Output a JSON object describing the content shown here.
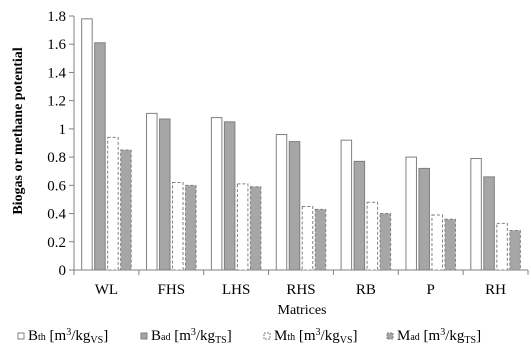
{
  "chart_data": {
    "type": "bar",
    "title": "",
    "xlabel": "Matrices",
    "ylabel": "Biogas or methane potential",
    "ylim": [
      0,
      1.8
    ],
    "yticks": [
      "0",
      "0.2",
      "0.4",
      "0.6",
      "0.8",
      "1",
      "1.2",
      "1.4",
      "1.6",
      "1.8"
    ],
    "categories": [
      "WL",
      "FHS",
      "LHS",
      "RHS",
      "RB",
      "P",
      "RH"
    ],
    "grid": false,
    "legend_position": "bottom",
    "series": [
      {
        "name": "Bth [m3/kgVS]",
        "legend": {
          "main": "B",
          "sub": "th",
          "unit_pre": " [m",
          "sup": "3",
          "unit_mid": "/kg",
          "unit_sub": "VS",
          "unit_post": "]"
        },
        "values": [
          1.78,
          1.11,
          1.08,
          0.96,
          0.92,
          0.8,
          0.79
        ],
        "fill": "#ffffff",
        "stroke": "#808080",
        "dashed": false
      },
      {
        "name": "Bad [m3/kgTS]",
        "legend": {
          "main": "B",
          "sub": "ad",
          "unit_pre": " [m",
          "sup": "3",
          "unit_mid": "/kg",
          "unit_sub": "TS",
          "unit_post": "]"
        },
        "values": [
          1.61,
          1.07,
          1.05,
          0.91,
          0.77,
          0.72,
          0.66
        ],
        "fill": "#a6a6a6",
        "stroke": "#7f7f7f",
        "dashed": false
      },
      {
        "name": "Mth [m3/kgVS]",
        "legend": {
          "main": "M",
          "sub": "th",
          "unit_pre": " [m",
          "sup": "3",
          "unit_mid": "/kg",
          "unit_sub": "VS",
          "unit_post": "]"
        },
        "values": [
          0.94,
          0.62,
          0.61,
          0.45,
          0.48,
          0.39,
          0.33
        ],
        "fill": "#ffffff",
        "stroke": "#808080",
        "dashed": true
      },
      {
        "name": "Mad [m3/kgTS]",
        "legend": {
          "main": "M",
          "sub": "ad",
          "unit_pre": " [m",
          "sup": "3",
          "unit_mid": "/kg",
          "unit_sub": "TS",
          "unit_post": "]"
        },
        "values": [
          0.85,
          0.6,
          0.59,
          0.43,
          0.4,
          0.36,
          0.28
        ],
        "fill": "#a6a6a6",
        "stroke": "#808080",
        "dashed": true
      }
    ]
  }
}
